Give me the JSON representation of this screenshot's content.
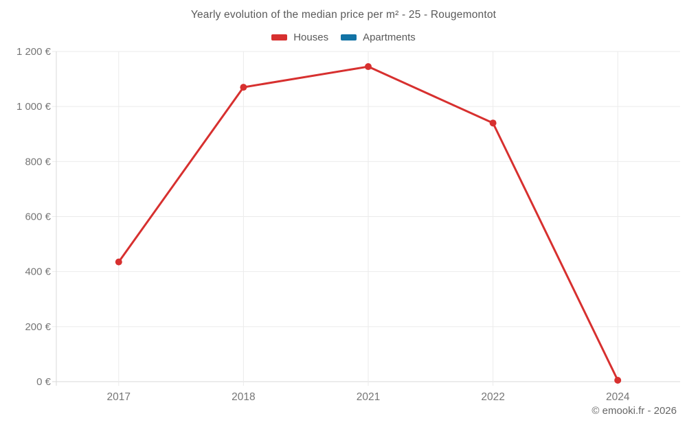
{
  "chart_data": {
    "type": "line",
    "title": "Yearly evolution of the median price per m² - 25 - Rougemontot",
    "categories": [
      "2017",
      "2018",
      "2021",
      "2022",
      "2024"
    ],
    "series": [
      {
        "name": "Houses",
        "color": "#d7302f",
        "values": [
          435,
          1070,
          1145,
          940,
          5
        ]
      },
      {
        "name": "Apartments",
        "color": "#1273a5",
        "values": []
      }
    ],
    "xlabel": "",
    "ylabel": "",
    "ylim": [
      0,
      1200
    ],
    "y_ticks": [
      {
        "value": 0,
        "label": "0 €"
      },
      {
        "value": 200,
        "label": "200 €"
      },
      {
        "value": 400,
        "label": "400 €"
      },
      {
        "value": 600,
        "label": "600 €"
      },
      {
        "value": 800,
        "label": "800 €"
      },
      {
        "value": 1000,
        "label": "1 000 €"
      },
      {
        "value": 1200,
        "label": "1 200 €"
      }
    ],
    "grid": true,
    "legend_position": "top",
    "colors": {
      "grid_line": "#ebebeb",
      "axis_line": "#d9d9d9",
      "tick_text": "#757575",
      "title_text": "#595959"
    }
  },
  "footer": {
    "credit": "© emooki.fr - 2026"
  }
}
